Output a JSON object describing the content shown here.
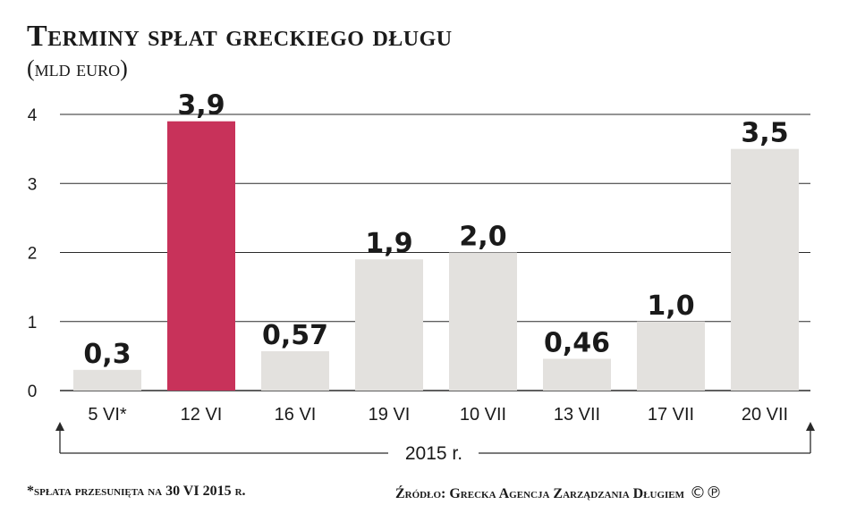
{
  "chart_data": {
    "type": "bar",
    "title": "Terminy spłat greckiego długu",
    "subtitle": "(mld euro)",
    "categories": [
      "5 VI*",
      "12 VI",
      "16 VI",
      "19 VI",
      "10 VII",
      "13 VII",
      "17 VII",
      "20 VII"
    ],
    "values": [
      0.3,
      3.9,
      0.57,
      1.9,
      2.0,
      0.46,
      1.0,
      3.5
    ],
    "value_labels": [
      "0,3",
      "3,9",
      "0,57",
      "1,9",
      "2,0",
      "0,46",
      "1,0",
      "3,5"
    ],
    "ylim": [
      0,
      4
    ],
    "yticks": [
      0,
      1,
      2,
      3,
      4
    ],
    "ytick_labels": [
      "0",
      "1",
      "2",
      "3",
      "4"
    ],
    "grid": true,
    "period_label": "2015 r.",
    "colors": {
      "bar": "#e3e1de",
      "highlight": "#c8325a",
      "grid": "#2a2a2a",
      "text": "#1a1a1a"
    },
    "highlight_index": 1
  },
  "footnote": "*spłata przesunięta na 30 VI 2015 r.",
  "source": "Źródło: Grecka Agencja Zarządzania Długiem",
  "logo_text": "©℗"
}
